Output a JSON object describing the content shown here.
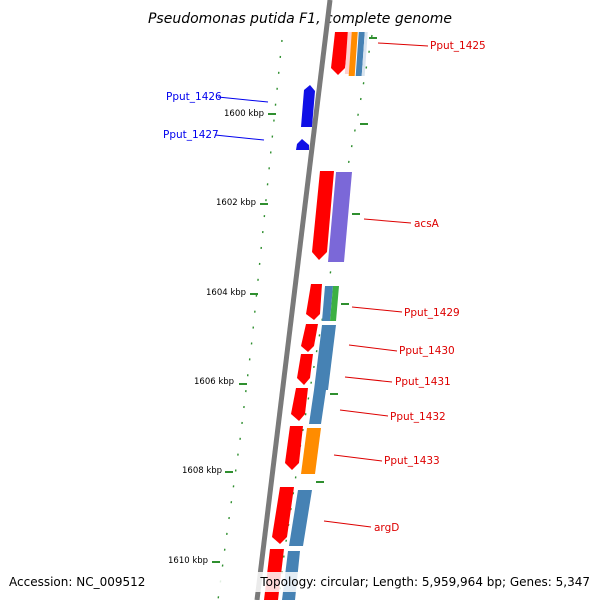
{
  "title": "Pseudomonas putida F1, complete genome",
  "footer": {
    "accession": "Accession: NC_009512",
    "topology": "Topology: circular; Length: 5,959,964 bp; Genes: 5,347"
  },
  "scale_labels": [
    "1600 kbp",
    "1602 kbp",
    "1604 kbp",
    "1606 kbp",
    "1608 kbp",
    "1610 kbp"
  ],
  "strand_colors": {
    "plus": "#0000ee",
    "minus": "#dd0000"
  },
  "feature_colors": {
    "cds": "#ff0000",
    "gene_plus": "#1010e6",
    "cog_amino_acid": "#4682b4",
    "cog_energy": "#ff8c00",
    "cog_lipid": "#7b68d8",
    "cog_other": "#3cb043",
    "cog_pale": "#ffd0d0"
  },
  "genes_plus_strand": [
    {
      "label": "Pput_1426"
    },
    {
      "label": "Pput_1427"
    }
  ],
  "genes_minus_strand": [
    {
      "label": "Pput_1425"
    },
    {
      "label": "acsA"
    },
    {
      "label": "Pput_1429"
    },
    {
      "label": "Pput_1430"
    },
    {
      "label": "Pput_1431"
    },
    {
      "label": "Pput_1432"
    },
    {
      "label": "Pput_1433"
    },
    {
      "label": "argD"
    }
  ]
}
